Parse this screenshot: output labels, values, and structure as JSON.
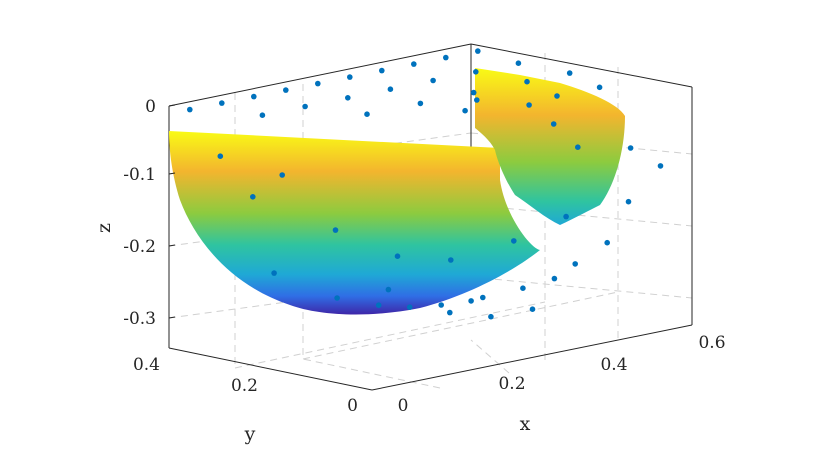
{
  "chart_data": {
    "type": "scatter",
    "description_kind": "3d-surface-with-scatter",
    "colormap": [
      "#3e26a8",
      "#2f6ee5",
      "#1fa9d5",
      "#2fc4a0",
      "#8ccb3f",
      "#f3b52e",
      "#f9fb15"
    ],
    "marker_color": "#0072bd",
    "grid": true,
    "axes": {
      "x": {
        "label": "x",
        "range": [
          0,
          0.6
        ],
        "ticks": [
          "0",
          "0.2",
          "0.4",
          "0.6"
        ]
      },
      "y": {
        "label": "y",
        "range": [
          0,
          0.4
        ],
        "ticks": [
          "0",
          "0.2",
          "0.4"
        ]
      },
      "z": {
        "label": "z",
        "range": [
          -0.33,
          0
        ],
        "ticks": [
          "0",
          "-0.1",
          "-0.2",
          "-0.3"
        ]
      }
    },
    "surface": {
      "shape": "bowl",
      "min_z": -0.29,
      "rim_z": -0.03
    },
    "points": [
      {
        "x": 0.02,
        "y": 0.38,
        "z": -0.005
      },
      {
        "x": 0.08,
        "y": 0.38,
        "z": -0.005
      },
      {
        "x": 0.14,
        "y": 0.38,
        "z": -0.005
      },
      {
        "x": 0.2,
        "y": 0.38,
        "z": -0.005
      },
      {
        "x": 0.26,
        "y": 0.38,
        "z": -0.005
      },
      {
        "x": 0.32,
        "y": 0.38,
        "z": -0.005
      },
      {
        "x": 0.38,
        "y": 0.38,
        "z": -0.005
      },
      {
        "x": 0.44,
        "y": 0.38,
        "z": -0.005
      },
      {
        "x": 0.5,
        "y": 0.38,
        "z": -0.005
      },
      {
        "x": 0.56,
        "y": 0.38,
        "z": -0.005
      },
      {
        "x": 0.08,
        "y": 0.3,
        "z": -0.01
      },
      {
        "x": 0.16,
        "y": 0.3,
        "z": -0.01
      },
      {
        "x": 0.24,
        "y": 0.3,
        "z": -0.01
      },
      {
        "x": 0.32,
        "y": 0.3,
        "z": -0.01
      },
      {
        "x": 0.4,
        "y": 0.3,
        "z": -0.01
      },
      {
        "x": 0.48,
        "y": 0.3,
        "z": -0.01
      },
      {
        "x": 0.56,
        "y": 0.3,
        "z": -0.01
      },
      {
        "x": 0.2,
        "y": 0.22,
        "z": -0.015
      },
      {
        "x": 0.3,
        "y": 0.22,
        "z": -0.015
      },
      {
        "x": 0.4,
        "y": 0.22,
        "z": -0.015
      },
      {
        "x": 0.5,
        "y": 0.22,
        "z": -0.015
      },
      {
        "x": 0.58,
        "y": 0.22,
        "z": -0.015
      },
      {
        "x": 0.48,
        "y": 0.14,
        "z": -0.02
      },
      {
        "x": 0.56,
        "y": 0.14,
        "z": -0.02
      },
      {
        "x": 0.52,
        "y": 0.34,
        "z": -0.06
      },
      {
        "x": 0.58,
        "y": 0.3,
        "z": -0.07
      },
      {
        "x": 0.46,
        "y": 0.3,
        "z": -0.06
      },
      {
        "x": 0.55,
        "y": 0.22,
        "z": -0.08
      },
      {
        "x": 0.5,
        "y": 0.12,
        "z": -0.09
      },
      {
        "x": 0.58,
        "y": 0.1,
        "z": -0.1
      },
      {
        "x": 0.56,
        "y": 0.02,
        "z": -0.11
      },
      {
        "x": 0.5,
        "y": 0.02,
        "z": -0.15
      },
      {
        "x": 0.02,
        "y": 0.32,
        "z": -0.06
      },
      {
        "x": 0.06,
        "y": 0.24,
        "z": -0.08
      },
      {
        "x": 0.1,
        "y": 0.34,
        "z": -0.13
      },
      {
        "x": 0.16,
        "y": 0.24,
        "z": -0.17
      },
      {
        "x": 0.2,
        "y": 0.16,
        "z": -0.2
      },
      {
        "x": 0.14,
        "y": 0.34,
        "z": -0.24
      },
      {
        "x": 0.22,
        "y": 0.3,
        "z": -0.28
      },
      {
        "x": 0.24,
        "y": 0.22,
        "z": -0.26
      },
      {
        "x": 0.3,
        "y": 0.16,
        "z": -0.22
      },
      {
        "x": 0.38,
        "y": 0.12,
        "z": -0.2
      },
      {
        "x": 0.44,
        "y": 0.08,
        "z": -0.17
      },
      {
        "x": 0.46,
        "y": 0.02,
        "z": -0.2
      },
      {
        "x": 0.34,
        "y": 0.06,
        "z": -0.25
      },
      {
        "x": 0.28,
        "y": 0.06,
        "z": -0.28
      },
      {
        "x": 0.26,
        "y": 0.12,
        "z": -0.28
      },
      {
        "x": 0.3,
        "y": 0.12,
        "z": -0.27
      },
      {
        "x": 0.32,
        "y": 0.02,
        "z": -0.27
      },
      {
        "x": 0.38,
        "y": 0.04,
        "z": -0.24
      },
      {
        "x": 0.4,
        "y": 0.02,
        "z": -0.22
      },
      {
        "x": 0.28,
        "y": 0.22,
        "z": -0.29
      },
      {
        "x": 0.32,
        "y": 0.2,
        "z": -0.29
      },
      {
        "x": 0.36,
        "y": 0.16,
        "z": -0.28
      },
      {
        "x": 0.26,
        "y": 0.26,
        "z": -0.29
      }
    ]
  }
}
